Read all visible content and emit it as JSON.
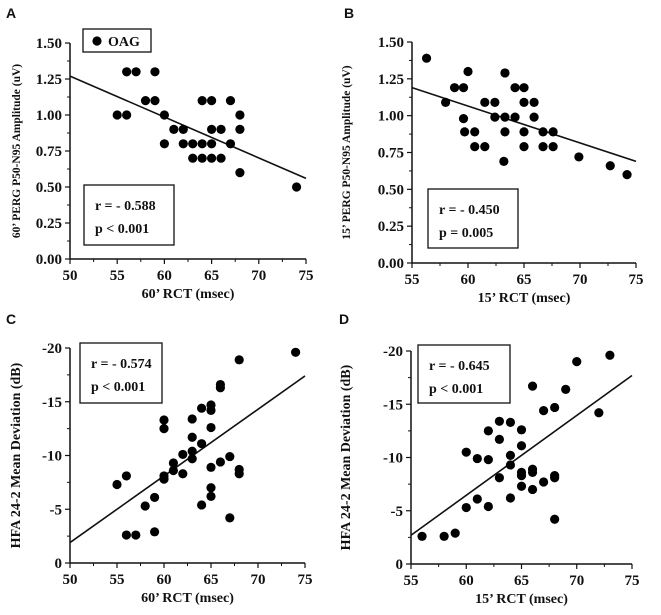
{
  "legend": {
    "label": "OAG"
  },
  "chart_data": [
    {
      "type": "scatter",
      "panel": "A",
      "xlabel": "60’ RCT (msec)",
      "ylabel": "60’ PERG P50-N95 Amplitude (uV)",
      "xlim": [
        50,
        75
      ],
      "ylim": [
        0,
        1.5
      ],
      "xticks": [
        50,
        55,
        60,
        65,
        70,
        75
      ],
      "yticks": [
        0,
        0.25,
        0.5,
        0.75,
        1.0,
        1.25,
        1.5
      ],
      "ytick_labels": [
        "0.00",
        "0.25",
        "0.50",
        "0.75",
        "1.00",
        "1.25",
        "1.50"
      ],
      "stat_r": "r  = - 0.588",
      "stat_p": "p < 0.001",
      "fit": [
        [
          50,
          1.27
        ],
        [
          75,
          0.56
        ]
      ],
      "points": [
        [
          55,
          1.0
        ],
        [
          56,
          1.0
        ],
        [
          56,
          1.3
        ],
        [
          57,
          1.3
        ],
        [
          58,
          1.1
        ],
        [
          59,
          1.1
        ],
        [
          59,
          1.3
        ],
        [
          60,
          1.0
        ],
        [
          60,
          0.8
        ],
        [
          61,
          0.9
        ],
        [
          62,
          0.9
        ],
        [
          62,
          0.8
        ],
        [
          63,
          0.8
        ],
        [
          63,
          0.7
        ],
        [
          64,
          1.1
        ],
        [
          64,
          0.8
        ],
        [
          64,
          0.7
        ],
        [
          65,
          1.1
        ],
        [
          65,
          0.9
        ],
        [
          65,
          0.8
        ],
        [
          65,
          0.7
        ],
        [
          66,
          0.9
        ],
        [
          66,
          0.7
        ],
        [
          67,
          1.1
        ],
        [
          67,
          0.8
        ],
        [
          68,
          1.0
        ],
        [
          68,
          0.9
        ],
        [
          68,
          0.6
        ],
        [
          74,
          0.5
        ]
      ]
    },
    {
      "type": "scatter",
      "panel": "B",
      "xlabel": "15’ RCT (msec)",
      "ylabel": "15’ PERG P50-N95 Amplitude (uV)",
      "xlim": [
        55,
        75
      ],
      "ylim": [
        0,
        1.5
      ],
      "xticks": [
        55,
        60,
        65,
        70,
        75
      ],
      "yticks": [
        0,
        0.25,
        0.5,
        0.75,
        1.0,
        1.25,
        1.5
      ],
      "ytick_labels": [
        "0.00",
        "0.25",
        "0.50",
        "0.75",
        "1.00",
        "1.25",
        "1.50"
      ],
      "stat_r": "r  = - 0.450",
      "stat_p": "p = 0.005",
      "fit": [
        [
          55,
          1.19
        ],
        [
          75,
          0.69
        ]
      ],
      "points": [
        [
          56.3,
          1.39
        ],
        [
          58,
          1.09
        ],
        [
          58.8,
          1.19
        ],
        [
          59.6,
          1.19
        ],
        [
          59.6,
          0.98
        ],
        [
          59.7,
          0.89
        ],
        [
          60,
          1.3
        ],
        [
          60.6,
          0.89
        ],
        [
          60.6,
          0.79
        ],
        [
          61.5,
          1.09
        ],
        [
          61.5,
          0.79
        ],
        [
          62.4,
          1.09
        ],
        [
          62.4,
          0.99
        ],
        [
          63.3,
          1.29
        ],
        [
          63.3,
          0.99
        ],
        [
          63.3,
          0.89
        ],
        [
          63.2,
          0.69
        ],
        [
          64.2,
          1.19
        ],
        [
          64.2,
          0.99
        ],
        [
          65,
          1.19
        ],
        [
          65,
          1.09
        ],
        [
          65,
          0.89
        ],
        [
          65,
          0.79
        ],
        [
          65.9,
          1.09
        ],
        [
          65.9,
          0.99
        ],
        [
          66.7,
          0.89
        ],
        [
          66.7,
          0.79
        ],
        [
          67.6,
          0.89
        ],
        [
          67.6,
          0.79
        ],
        [
          69.9,
          0.72
        ],
        [
          72.7,
          0.66
        ],
        [
          74.2,
          0.6
        ]
      ]
    },
    {
      "type": "scatter",
      "panel": "C",
      "xlabel": "60’ RCT (msec)",
      "ylabel": "HFA 24-2 Mean Deviation (dB)",
      "xlim": [
        50,
        75
      ],
      "ylim": [
        0,
        -20
      ],
      "xticks": [
        50,
        55,
        60,
        65,
        70,
        75
      ],
      "yticks": [
        0,
        -5,
        -10,
        -15,
        -20
      ],
      "ytick_labels": [
        "0",
        "-5",
        "-10",
        "-15",
        "-20"
      ],
      "stat_r": "r  = - 0.574",
      "stat_p": "p < 0.001",
      "fit": [
        [
          50,
          -1.9
        ],
        [
          75,
          -17.4
        ]
      ],
      "points": [
        [
          55,
          -7.3
        ],
        [
          56,
          -8.1
        ],
        [
          56,
          -2.6
        ],
        [
          57,
          -2.6
        ],
        [
          58,
          -5.3
        ],
        [
          59,
          -6.1
        ],
        [
          59,
          -2.9
        ],
        [
          60,
          -13.3
        ],
        [
          60,
          -12.5
        ],
        [
          60,
          -8.1
        ],
        [
          60,
          -7.8
        ],
        [
          61,
          -9.3
        ],
        [
          61,
          -8.6
        ],
        [
          62,
          -10.1
        ],
        [
          62,
          -8.3
        ],
        [
          63,
          -13.4
        ],
        [
          63,
          -11.7
        ],
        [
          63,
          -10.4
        ],
        [
          63,
          -9.7
        ],
        [
          64,
          -14.4
        ],
        [
          64,
          -11.1
        ],
        [
          64,
          -5.4
        ],
        [
          65,
          -14.7
        ],
        [
          65,
          -14.2
        ],
        [
          65,
          -12.6
        ],
        [
          65,
          -8.9
        ],
        [
          65,
          -7.0
        ],
        [
          65,
          -6.2
        ],
        [
          66,
          -16.6
        ],
        [
          66,
          -16.3
        ],
        [
          66,
          -9.4
        ],
        [
          67,
          -9.9
        ],
        [
          67,
          -4.2
        ],
        [
          68,
          -18.9
        ],
        [
          68,
          -8.7
        ],
        [
          68,
          -8.3
        ],
        [
          74,
          -19.6
        ]
      ]
    },
    {
      "type": "scatter",
      "panel": "D",
      "xlabel": "15’ RCT (msec)",
      "ylabel": "HFA 24-2 Mean Deviation (dB)",
      "xlim": [
        55,
        75
      ],
      "ylim": [
        0,
        -20
      ],
      "xticks": [
        55,
        60,
        65,
        70,
        75
      ],
      "yticks": [
        0,
        -5,
        -10,
        -15,
        -20
      ],
      "ytick_labels": [
        "0",
        "-5",
        "-10",
        "-15",
        "-20"
      ],
      "stat_r": "r  = - 0.645",
      "stat_p": "p < 0.001",
      "fit": [
        [
          55,
          -2.7
        ],
        [
          75,
          -17.7
        ]
      ],
      "points": [
        [
          56,
          -2.6
        ],
        [
          58,
          -2.6
        ],
        [
          59,
          -2.9
        ],
        [
          60,
          -10.5
        ],
        [
          60,
          -5.3
        ],
        [
          61,
          -9.9
        ],
        [
          61,
          -6.1
        ],
        [
          62,
          -12.5
        ],
        [
          62,
          -9.8
        ],
        [
          62,
          -5.4
        ],
        [
          63,
          -13.4
        ],
        [
          63,
          -11.7
        ],
        [
          63,
          -8.1
        ],
        [
          64,
          -13.3
        ],
        [
          64,
          -10.2
        ],
        [
          64,
          -9.3
        ],
        [
          64,
          -6.2
        ],
        [
          65,
          -12.6
        ],
        [
          65,
          -11.1
        ],
        [
          65,
          -8.6
        ],
        [
          65,
          -8.3
        ],
        [
          65,
          -7.3
        ],
        [
          66,
          -16.7
        ],
        [
          66,
          -8.9
        ],
        [
          66,
          -8.6
        ],
        [
          66,
          -7.0
        ],
        [
          67,
          -14.4
        ],
        [
          67,
          -7.7
        ],
        [
          68,
          -14.7
        ],
        [
          68,
          -8.3
        ],
        [
          68,
          -8.1
        ],
        [
          68,
          -4.2
        ],
        [
          69,
          -16.4
        ],
        [
          70,
          -19.0
        ],
        [
          72,
          -14.2
        ],
        [
          73,
          -19.6
        ]
      ]
    }
  ]
}
